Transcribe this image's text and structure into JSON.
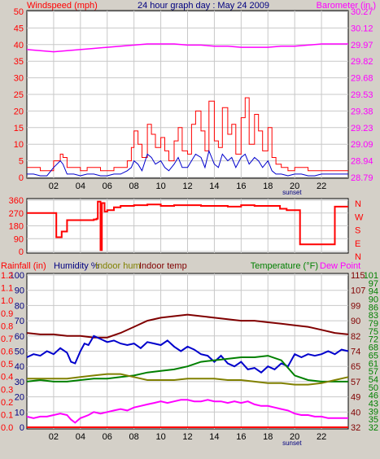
{
  "colors": {
    "background": "#d4d0c8",
    "plot_bg": "#ffffff",
    "grid": "#c8c8c8",
    "wind_gust": "#ff0000",
    "wind_avg": "#0000cc",
    "barometer": "#ff00ff",
    "direction": "#ff0000",
    "rain": "#ff0000",
    "humidity": "#ff00ff",
    "indoor_hum": "#808000",
    "indoor_temp": "#800000",
    "temperature": "#008000",
    "dew_point": "#0000cc",
    "title": "#000080"
  },
  "chart_data": [
    {
      "type": "line",
      "title": "24 hour graph day : May 24 2009",
      "ylabel_left": "Windspeed (mph)",
      "ylabel_right": "Barometer (in.)",
      "x_ticks": [
        "02",
        "04",
        "06",
        "08",
        "10",
        "12",
        "14",
        "16",
        "18",
        "20",
        "22"
      ],
      "x_annotation": "sunset",
      "x_annotation_at": 19.8,
      "xlim": [
        0,
        24
      ],
      "ylim_left": [
        0,
        50
      ],
      "yticks_left": [
        "0",
        "5",
        "10",
        "15",
        "20",
        "25",
        "30",
        "35",
        "40",
        "45",
        "50"
      ],
      "ylim_right": [
        28.79,
        30.27
      ],
      "yticks_right": [
        "28.79",
        "28.94",
        "29.09",
        "29.23",
        "29.38",
        "29.53",
        "29.68",
        "29.82",
        "29.97",
        "30.12",
        "30.27"
      ],
      "series": [
        {
          "name": "Wind gust",
          "axis": "left",
          "style": "step",
          "x": [
            0,
            0.5,
            1,
            1.5,
            2,
            2.5,
            2.7,
            3,
            3.5,
            4,
            4.5,
            5,
            5.5,
            6,
            6.5,
            7,
            7.5,
            7.8,
            8,
            8.3,
            8.6,
            9,
            9.3,
            9.6,
            10,
            10.3,
            10.6,
            11,
            11.3,
            11.6,
            12,
            12.3,
            12.6,
            13,
            13.3,
            13.6,
            14,
            14.3,
            14.6,
            15,
            15.3,
            15.6,
            16,
            16.3,
            16.6,
            17,
            17.3,
            17.6,
            18,
            18.3,
            18.6,
            19,
            19.5,
            20,
            20.5,
            21,
            21.5,
            22,
            22.5,
            23,
            23.5,
            24
          ],
          "y": [
            3,
            3,
            2,
            2,
            5,
            7,
            6,
            3,
            3,
            2,
            3,
            3,
            2,
            2,
            3,
            3,
            5,
            9,
            14,
            10,
            6,
            16,
            13,
            9,
            12,
            8,
            5,
            11,
            15,
            8,
            7,
            16,
            20,
            14,
            8,
            23,
            11,
            9,
            21,
            13,
            16,
            7,
            18,
            24,
            10,
            19,
            14,
            8,
            15,
            6,
            4,
            3,
            2,
            3,
            3,
            2,
            2,
            2,
            2,
            2,
            2,
            2
          ]
        },
        {
          "name": "Wind average",
          "axis": "left",
          "style": "line",
          "x": [
            0,
            0.5,
            1,
            1.5,
            2,
            2.5,
            2.7,
            3,
            3.5,
            4,
            4.5,
            5,
            5.5,
            6,
            6.5,
            7,
            7.5,
            7.8,
            8,
            8.3,
            8.6,
            9,
            9.3,
            9.6,
            10,
            10.3,
            10.6,
            11,
            11.3,
            11.6,
            12,
            12.3,
            12.6,
            13,
            13.3,
            13.6,
            14,
            14.3,
            14.6,
            15,
            15.3,
            15.6,
            16,
            16.3,
            16.6,
            17,
            17.3,
            17.6,
            18,
            18.3,
            18.6,
            19,
            19.5,
            20,
            20.5,
            21,
            21.5,
            22,
            22.5,
            23,
            23.5,
            24
          ],
          "y": [
            1,
            1,
            0.5,
            0.5,
            3,
            5,
            4,
            1,
            1,
            0.5,
            1,
            1,
            0.5,
            0.5,
            1,
            1,
            2,
            3,
            5,
            4,
            2,
            7,
            6,
            4,
            5,
            3,
            2,
            4,
            6,
            3,
            3,
            5,
            7,
            6,
            3,
            8,
            4,
            3,
            7,
            5,
            6,
            3,
            6,
            7,
            4,
            6,
            5,
            3,
            5,
            2,
            1,
            1,
            0.5,
            1,
            1,
            0.5,
            0.5,
            1,
            1,
            1,
            1,
            1
          ]
        },
        {
          "name": "Barometer",
          "axis": "right",
          "style": "line",
          "x": [
            0,
            1,
            2,
            3,
            4,
            5,
            6,
            7,
            8,
            9,
            10,
            11,
            12,
            13,
            14,
            15,
            16,
            17,
            18,
            19,
            20,
            21,
            22,
            23,
            24
          ],
          "y": [
            29.93,
            29.92,
            29.91,
            29.92,
            29.93,
            29.94,
            29.95,
            29.96,
            29.97,
            29.98,
            29.98,
            29.98,
            29.97,
            29.97,
            29.96,
            29.96,
            29.95,
            29.95,
            29.95,
            29.96,
            29.96,
            29.97,
            29.98,
            29.98,
            29.98
          ]
        }
      ]
    },
    {
      "type": "line",
      "ylim": [
        0,
        360
      ],
      "yticks_left": [
        "0",
        "90",
        "180",
        "270",
        "360"
      ],
      "yticks_right": [
        "N",
        "E",
        "S",
        "W",
        "N"
      ],
      "xlim": [
        0,
        24
      ],
      "series": [
        {
          "name": "Wind direction",
          "style": "step",
          "x": [
            0,
            2,
            2.2,
            2.6,
            3,
            4,
            5,
            5.2,
            5.3,
            5.5,
            5.6,
            5.8,
            6,
            6.5,
            7,
            8,
            9,
            10,
            11,
            12,
            13,
            14,
            15,
            16,
            17,
            18,
            18.9,
            19.4,
            20.4,
            21,
            22,
            22.5,
            23,
            24
          ],
          "y": [
            270,
            270,
            100,
            140,
            220,
            220,
            225,
            230,
            350,
            10,
            340,
            280,
            290,
            310,
            320,
            325,
            330,
            320,
            325,
            325,
            320,
            320,
            315,
            325,
            320,
            320,
            300,
            290,
            50,
            50,
            50,
            50,
            315,
            315
          ]
        }
      ]
    },
    {
      "type": "line",
      "ylabel_rain": "Rainfall (in)",
      "ylabel_humidity": "Humidity %",
      "ylabel_indoor_hum": "Indoor hum",
      "ylabel_indoor_temp": "Indoor temp",
      "ylabel_temperature": "Temperature (°F)",
      "ylabel_dew": "Dew Point",
      "x_ticks": [
        "02",
        "04",
        "06",
        "08",
        "10",
        "12",
        "14",
        "16",
        "18",
        "20",
        "22"
      ],
      "x_annotation": "sunset",
      "x_annotation_at": 19.8,
      "xlim": [
        0,
        24
      ],
      "ylim_humidity": [
        0,
        100
      ],
      "yticks_humidity": [
        "0",
        "10",
        "20",
        "30",
        "40",
        "50",
        "60",
        "70",
        "80",
        "90",
        "100"
      ],
      "ylim_rain": [
        0,
        1.2
      ],
      "yticks_rain": [
        "0.0",
        "0.1",
        "0.2",
        "0.3",
        "0.4",
        "0.5",
        "0.6",
        "0.7",
        "0.8",
        "0.9",
        "1.0",
        "1.1",
        "1.2"
      ],
      "ylim_indoor": [
        32,
        115
      ],
      "yticks_indoor": [
        "32",
        "40",
        "49",
        "57",
        "65",
        "74",
        "82",
        "90",
        "99",
        "107",
        "115"
      ],
      "ylim_outdoor": [
        32,
        115
      ],
      "yticks_outdoor": [
        "32",
        "35",
        "39",
        "43",
        "46",
        "50",
        "54",
        "57",
        "61",
        "65",
        "68",
        "72",
        "75",
        "79",
        "83",
        "86",
        "90",
        "94",
        "97",
        "101"
      ],
      "series": [
        {
          "name": "Rainfall",
          "axis": "rain",
          "x": [
            0,
            24
          ],
          "y": [
            0.0,
            0.0
          ]
        },
        {
          "name": "Indoor temp",
          "axis": "humidity",
          "x": [
            0,
            1,
            2,
            3,
            4,
            5,
            6,
            7,
            8,
            9,
            10,
            11,
            12,
            13,
            14,
            15,
            16,
            17,
            18,
            19,
            20,
            21,
            22,
            23,
            24
          ],
          "y": [
            62,
            61,
            61,
            60,
            60,
            59,
            59,
            62,
            66,
            70,
            72,
            73,
            74,
            73,
            72,
            71,
            70,
            70,
            69,
            68,
            67,
            66,
            64,
            62,
            61
          ]
        },
        {
          "name": "Dew Point",
          "axis": "humidity",
          "x": [
            0,
            0.5,
            1,
            1.5,
            2,
            2.5,
            3,
            3.3,
            3.6,
            4,
            4.3,
            4.6,
            5,
            5.5,
            6,
            6.5,
            7,
            7.5,
            8,
            8.5,
            9,
            9.5,
            10,
            10.5,
            11,
            11.5,
            12,
            12.5,
            13,
            13.5,
            14,
            14.5,
            15,
            15.5,
            16,
            16.5,
            17,
            17.5,
            18,
            18.5,
            19,
            19.5,
            20,
            20.5,
            21,
            21.5,
            22,
            22.5,
            23,
            23.5,
            24
          ],
          "y": [
            46,
            48,
            47,
            50,
            48,
            52,
            49,
            43,
            42,
            50,
            55,
            54,
            60,
            58,
            56,
            57,
            55,
            54,
            55,
            52,
            56,
            55,
            54,
            57,
            53,
            50,
            53,
            51,
            48,
            47,
            43,
            47,
            42,
            40,
            43,
            38,
            39,
            36,
            40,
            38,
            42,
            40,
            48,
            46,
            48,
            47,
            48,
            50,
            48,
            51,
            50
          ]
        },
        {
          "name": "Temperature",
          "axis": "humidity",
          "x": [
            0,
            1,
            2,
            3,
            4,
            5,
            6,
            7,
            8,
            9,
            10,
            11,
            12,
            13,
            14,
            15,
            16,
            17,
            18,
            19,
            20,
            21,
            22,
            23,
            24
          ],
          "y": [
            30,
            31,
            30,
            30,
            31,
            32,
            32,
            33,
            34,
            36,
            37,
            38,
            40,
            43,
            44,
            45,
            46,
            46,
            47,
            44,
            34,
            31,
            30,
            30,
            30
          ]
        },
        {
          "name": "Indoor hum",
          "axis": "humidity",
          "x": [
            0,
            1,
            2,
            3,
            4,
            5,
            6,
            7,
            8,
            9,
            10,
            11,
            12,
            13,
            14,
            15,
            16,
            17,
            18,
            19,
            20,
            21,
            22,
            23,
            24
          ],
          "y": [
            32,
            32,
            32,
            32,
            33,
            34,
            35,
            35,
            33,
            31,
            31,
            31,
            32,
            32,
            32,
            31,
            31,
            30,
            29,
            29,
            28,
            28,
            29,
            31,
            33
          ]
        },
        {
          "name": "Humidity",
          "axis": "humidity",
          "x": [
            0,
            0.5,
            1,
            1.5,
            2,
            2.5,
            3,
            3.3,
            3.6,
            4,
            4.3,
            4.6,
            5,
            5.5,
            6,
            6.5,
            7,
            7.5,
            8,
            8.5,
            9,
            9.5,
            10,
            10.5,
            11,
            11.5,
            12,
            12.5,
            13,
            13.5,
            14,
            14.5,
            15,
            15.5,
            16,
            16.5,
            17,
            17.5,
            18,
            18.5,
            19,
            19.5,
            20,
            20.5,
            21,
            21.5,
            22,
            22.5,
            23,
            23.5,
            24
          ],
          "y": [
            7,
            6,
            7,
            7,
            8,
            9,
            8,
            5,
            3,
            6,
            7,
            8,
            10,
            9,
            10,
            11,
            12,
            11,
            13,
            14,
            15,
            16,
            17,
            16,
            17,
            18,
            18,
            17,
            17,
            18,
            17,
            17,
            16,
            17,
            16,
            17,
            15,
            14,
            14,
            13,
            12,
            11,
            9,
            8,
            8,
            7,
            7,
            6,
            6,
            6,
            6
          ]
        }
      ]
    }
  ]
}
